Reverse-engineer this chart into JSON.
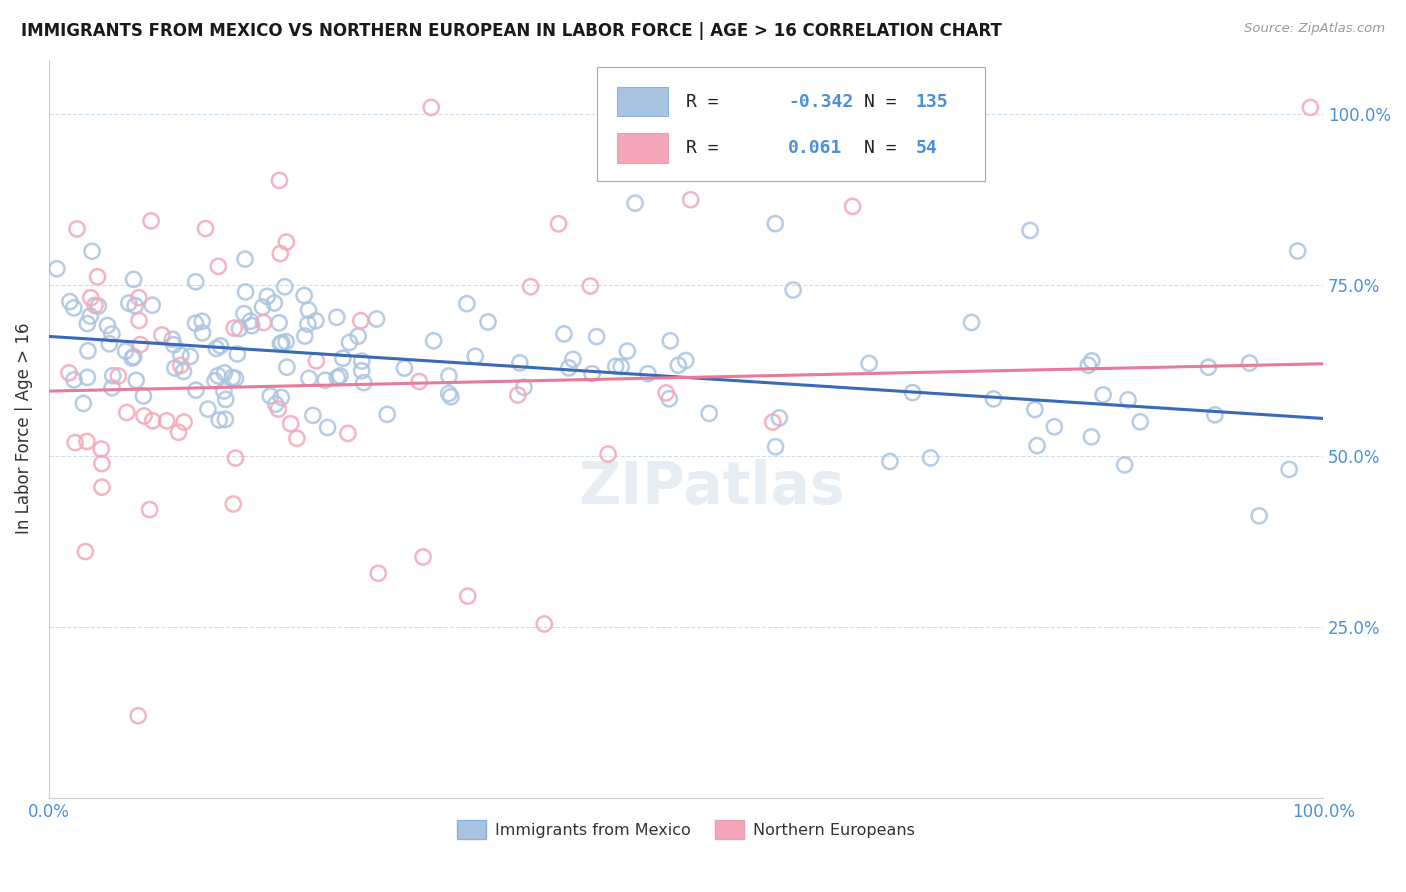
{
  "title": "IMMIGRANTS FROM MEXICO VS NORTHERN EUROPEAN IN LABOR FORCE | AGE > 16 CORRELATION CHART",
  "source": "Source: ZipAtlas.com",
  "ylabel": "In Labor Force | Age > 16",
  "xlim": [
    0.0,
    1.0
  ],
  "ylim": [
    0.0,
    1.08
  ],
  "x_tick_labels": [
    "0.0%",
    "",
    "",
    "",
    "100.0%"
  ],
  "y_tick_labels_right": [
    "25.0%",
    "50.0%",
    "75.0%",
    "100.0%"
  ],
  "y_tick_vals": [
    0.25,
    0.5,
    0.75,
    1.0
  ],
  "blue_color": "#a8c4e0",
  "pink_color": "#f4a7b9",
  "line_blue": "#3a6ab5",
  "line_pink": "#e87a9a",
  "tick_color": "#4a90d9",
  "watermark": "ZIPatlas",
  "blue_line_start": 0.675,
  "blue_line_end": 0.555,
  "pink_line_start": 0.595,
  "pink_line_end": 0.635,
  "grid_color": "#ccddee",
  "spine_color": "#cccccc"
}
